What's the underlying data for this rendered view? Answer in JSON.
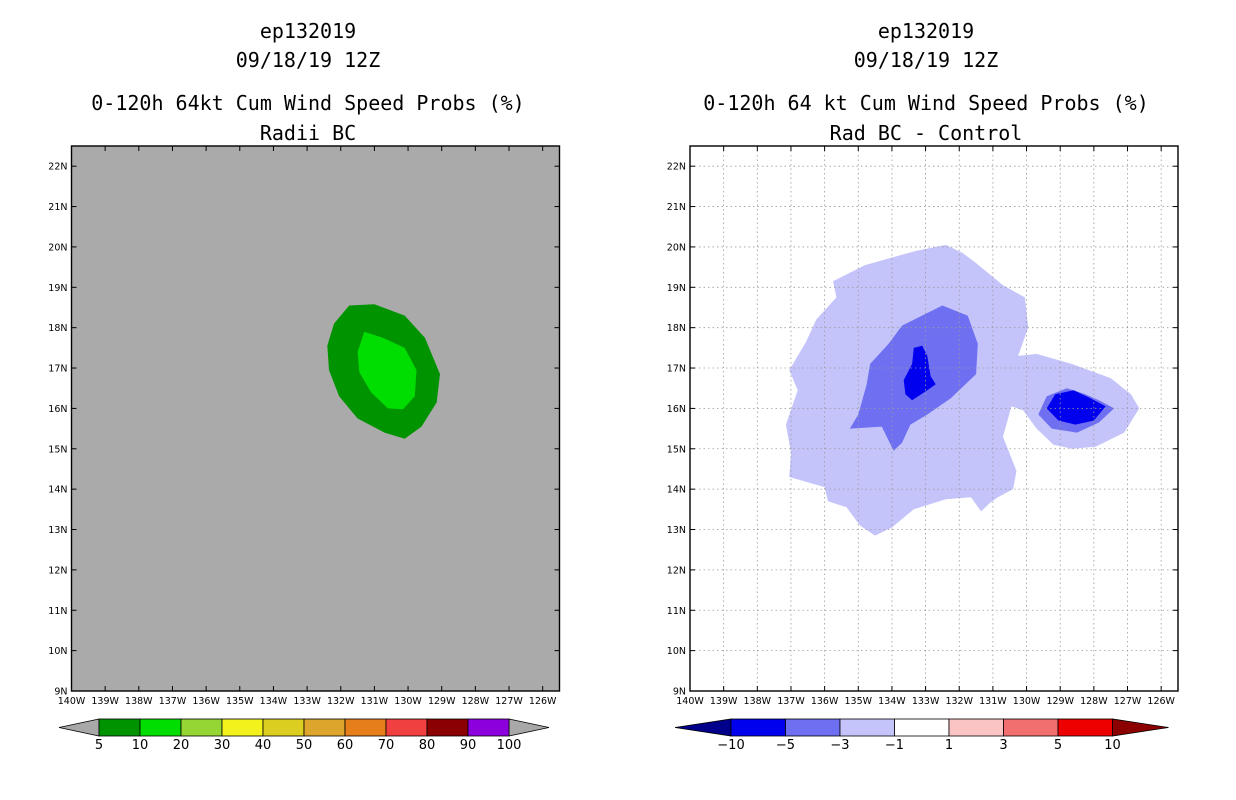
{
  "chart_data": [
    {
      "type": "contour-map",
      "storm_id": "ep132019",
      "datetime": "09/18/19 12Z",
      "title": "0-120h 64kt Cum Wind Speed Probs (%)",
      "subtitle": "Radii BC",
      "xlim": [
        -140,
        -125.5
      ],
      "ylim": [
        9,
        22.5
      ],
      "x_ticks": [
        "140W",
        "139W",
        "138W",
        "137W",
        "136W",
        "135W",
        "134W",
        "133W",
        "132W",
        "131W",
        "130W",
        "129W",
        "128W",
        "127W",
        "126W"
      ],
      "y_ticks": [
        "9N",
        "10N",
        "11N",
        "12N",
        "13N",
        "14N",
        "15N",
        "16N",
        "17N",
        "18N",
        "19N",
        "20N",
        "21N",
        "22N"
      ],
      "grid": false,
      "background_color": "#aaaaaa",
      "colorbar": {
        "levels": [
          "5",
          "10",
          "20",
          "30",
          "40",
          "50",
          "60",
          "70",
          "80",
          "90",
          "100"
        ],
        "colors": [
          "#009300",
          "#00dd00",
          "#95d534",
          "#f3f21d",
          "#dcce20",
          "#dda52b",
          "#e67f1a",
          "#f04040",
          "#8b0000",
          "#8c00dd"
        ],
        "end_colors": [
          "#a8a8a8",
          "#a8a8a8"
        ]
      },
      "contours": [
        {
          "level": "5-10",
          "color": "#009300",
          "lonlat": [
            [
              -131.75,
              18.55
            ],
            [
              -131.0,
              18.58
            ],
            [
              -130.1,
              18.3
            ],
            [
              -129.5,
              17.75
            ],
            [
              -129.05,
              16.85
            ],
            [
              -129.15,
              16.15
            ],
            [
              -129.6,
              15.55
            ],
            [
              -130.1,
              15.25
            ],
            [
              -130.7,
              15.4
            ],
            [
              -131.5,
              15.75
            ],
            [
              -132.05,
              16.3
            ],
            [
              -132.35,
              16.95
            ],
            [
              -132.4,
              17.55
            ],
            [
              -132.2,
              18.1
            ]
          ]
        },
        {
          "level": "10-20",
          "color": "#00dd00",
          "lonlat": [
            [
              -131.3,
              17.9
            ],
            [
              -130.75,
              17.75
            ],
            [
              -130.1,
              17.5
            ],
            [
              -129.75,
              16.95
            ],
            [
              -129.8,
              16.3
            ],
            [
              -130.15,
              15.98
            ],
            [
              -130.6,
              16.0
            ],
            [
              -131.1,
              16.4
            ],
            [
              -131.45,
              16.9
            ],
            [
              -131.5,
              17.4
            ]
          ]
        }
      ]
    },
    {
      "type": "contour-map",
      "storm_id": "ep132019",
      "datetime": "09/18/19 12Z",
      "title": "0-120h 64 kt Cum Wind Speed Probs (%)",
      "subtitle": "Rad BC - Control",
      "xlim": [
        -140,
        -125.5
      ],
      "ylim": [
        9,
        22.5
      ],
      "x_ticks": [
        "140W",
        "139W",
        "138W",
        "137W",
        "136W",
        "135W",
        "134W",
        "133W",
        "132W",
        "131W",
        "130W",
        "129W",
        "128W",
        "127W",
        "126W"
      ],
      "y_ticks": [
        "9N",
        "10N",
        "11N",
        "12N",
        "13N",
        "14N",
        "15N",
        "16N",
        "17N",
        "18N",
        "19N",
        "20N",
        "21N",
        "22N"
      ],
      "grid": true,
      "background_color": "#ffffff",
      "colorbar": {
        "levels": [
          "-10",
          "-5",
          "-3",
          "-1",
          "1",
          "3",
          "5",
          "10"
        ],
        "colors": [
          "#0000ee",
          "#6f6ff2",
          "#c4c4fb",
          "#ffffff",
          "#fbc4c4",
          "#f26f6f",
          "#ee0000"
        ],
        "end_colors": [
          "#00008b",
          "#8b0000"
        ]
      },
      "contours": [
        {
          "level": "-3 to -1",
          "color": "#c4c4fb",
          "lonlat": [
            [
              -134.8,
              19.55
            ],
            [
              -133.3,
              19.9
            ],
            [
              -132.4,
              20.05
            ],
            [
              -131.9,
              19.85
            ],
            [
              -131.5,
              19.6
            ],
            [
              -130.7,
              19.05
            ],
            [
              -130.05,
              18.75
            ],
            [
              -129.95,
              18.0
            ],
            [
              -130.25,
              17.3
            ],
            [
              -129.7,
              17.35
            ],
            [
              -128.65,
              17.1
            ],
            [
              -127.5,
              16.75
            ],
            [
              -126.9,
              16.35
            ],
            [
              -126.65,
              16.0
            ],
            [
              -127.1,
              15.4
            ],
            [
              -127.95,
              15.05
            ],
            [
              -128.65,
              15.0
            ],
            [
              -129.2,
              15.1
            ],
            [
              -129.7,
              15.5
            ],
            [
              -130.1,
              15.95
            ],
            [
              -130.45,
              16.05
            ],
            [
              -130.7,
              15.3
            ],
            [
              -130.3,
              14.45
            ],
            [
              -130.4,
              14.0
            ],
            [
              -130.85,
              13.8
            ],
            [
              -131.1,
              13.65
            ],
            [
              -131.35,
              13.45
            ],
            [
              -131.65,
              13.8
            ],
            [
              -132.4,
              13.75
            ],
            [
              -133.35,
              13.5
            ],
            [
              -134.0,
              13.05
            ],
            [
              -134.5,
              12.85
            ],
            [
              -134.95,
              13.1
            ],
            [
              -135.35,
              13.55
            ],
            [
              -135.9,
              13.7
            ],
            [
              -136.0,
              14.05
            ],
            [
              -137.05,
              14.3
            ],
            [
              -137.0,
              14.9
            ],
            [
              -137.15,
              15.6
            ],
            [
              -136.8,
              16.45
            ],
            [
              -137.05,
              16.95
            ],
            [
              -136.55,
              17.65
            ],
            [
              -136.25,
              18.2
            ],
            [
              -135.65,
              18.75
            ],
            [
              -135.75,
              19.15
            ]
          ]
        },
        {
          "level": "-5 to -3 (west)",
          "color": "#6f6ff2",
          "lonlat": [
            [
              -133.7,
              18.05
            ],
            [
              -132.5,
              18.55
            ],
            [
              -131.75,
              18.3
            ],
            [
              -131.45,
              17.6
            ],
            [
              -131.5,
              16.85
            ],
            [
              -132.25,
              16.25
            ],
            [
              -132.95,
              15.85
            ],
            [
              -133.45,
              15.6
            ],
            [
              -133.7,
              15.15
            ],
            [
              -133.95,
              14.95
            ],
            [
              -134.3,
              15.55
            ],
            [
              -135.25,
              15.5
            ],
            [
              -135.0,
              15.85
            ],
            [
              -134.75,
              16.6
            ],
            [
              -134.65,
              17.1
            ],
            [
              -134.1,
              17.6
            ]
          ]
        },
        {
          "level": "-10 to -5 (west)",
          "color": "#0000ee",
          "lonlat": [
            [
              -133.1,
              17.55
            ],
            [
              -132.95,
              17.3
            ],
            [
              -132.85,
              16.8
            ],
            [
              -132.7,
              16.6
            ],
            [
              -132.95,
              16.45
            ],
            [
              -133.4,
              16.2
            ],
            [
              -133.6,
              16.35
            ],
            [
              -133.65,
              16.7
            ],
            [
              -133.4,
              17.1
            ],
            [
              -133.35,
              17.5
            ]
          ]
        },
        {
          "level": "-5 to -3 (east)",
          "color": "#6f6ff2",
          "lonlat": [
            [
              -128.8,
              16.5
            ],
            [
              -128.25,
              16.35
            ],
            [
              -127.85,
              16.2
            ],
            [
              -127.4,
              16.0
            ],
            [
              -127.85,
              15.65
            ],
            [
              -128.5,
              15.4
            ],
            [
              -129.25,
              15.5
            ],
            [
              -129.65,
              15.85
            ],
            [
              -129.4,
              16.3
            ]
          ]
        },
        {
          "level": "-10 to -5 (east)",
          "color": "#0000ee",
          "lonlat": [
            [
              -128.6,
              16.45
            ],
            [
              -128.1,
              16.25
            ],
            [
              -127.65,
              16.05
            ],
            [
              -128.0,
              15.7
            ],
            [
              -128.55,
              15.6
            ],
            [
              -129.05,
              15.7
            ],
            [
              -129.4,
              16.0
            ],
            [
              -129.15,
              16.35
            ]
          ]
        }
      ]
    }
  ]
}
